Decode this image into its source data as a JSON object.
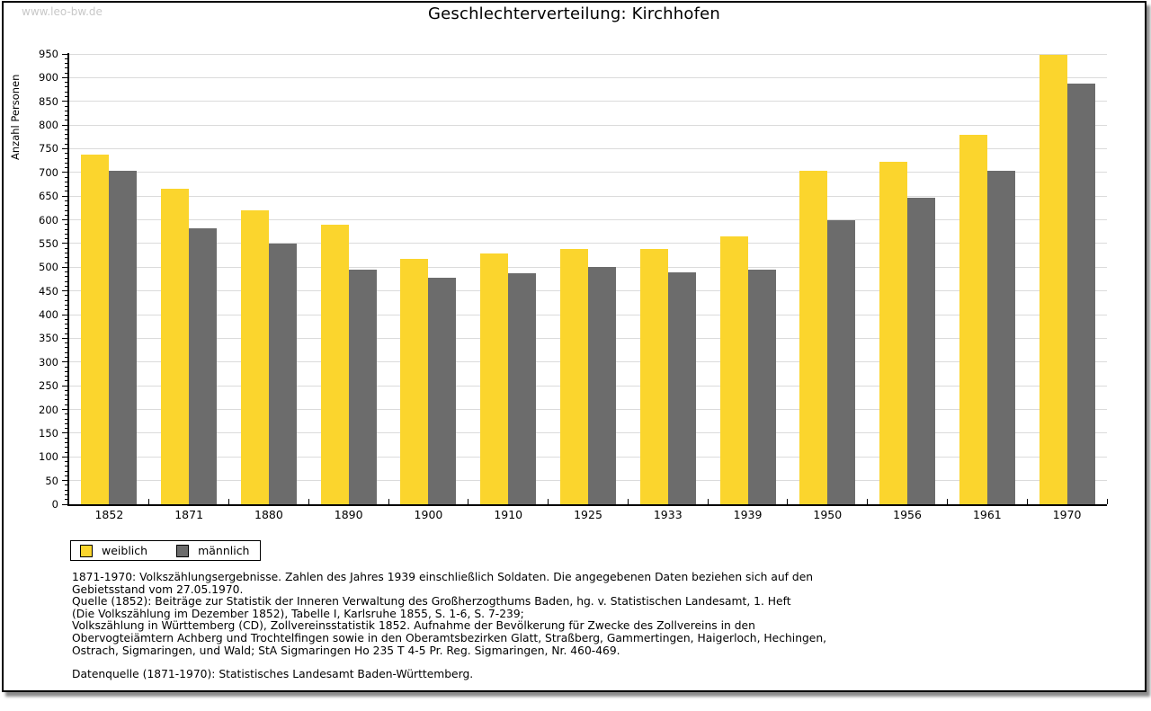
{
  "watermark": "www.leo-bw.de",
  "header": {
    "title": "Geschlechterverteilung: Kirchhofen"
  },
  "chart_data": {
    "type": "bar",
    "title": "Geschlechterverteilung: Kirchhofen",
    "xlabel": "",
    "ylabel": "Anzahl Personen",
    "ylim": [
      0,
      950
    ],
    "ytick_step": 50,
    "minor_tick_step": 10,
    "grid": true,
    "legend_position": "bottom-left",
    "categories": [
      "1852",
      "1871",
      "1880",
      "1890",
      "1900",
      "1910",
      "1925",
      "1933",
      "1939",
      "1950",
      "1956",
      "1961",
      "1970"
    ],
    "series": [
      {
        "name": "weiblich",
        "color": "#FBD52D",
        "values": [
          737,
          665,
          620,
          589,
          517,
          530,
          538,
          538,
          566,
          704,
          722,
          780,
          948
        ]
      },
      {
        "name": "männlich",
        "color": "#6C6C6C",
        "values": [
          703,
          583,
          550,
          495,
          477,
          488,
          501,
          490,
          494,
          599,
          647,
          704,
          888
        ]
      }
    ],
    "colors": {
      "grid": "#DBDBDB",
      "axis": "#000000",
      "watermark": "#C8C8C8"
    }
  },
  "footnote": {
    "lines": [
      "1871-1970: Volkszählungsergebnisse. Zahlen des Jahres 1939 einschließlich Soldaten. Die angegebenen Daten beziehen sich auf den",
      "Gebietsstand vom 27.05.1970.",
      "Quelle (1852): Beiträge zur Statistik der Inneren Verwaltung des Großherzogthums Baden, hg. v. Statistischen Landesamt, 1. Heft",
      "(Die Volkszählung im Dezember 1852), Tabelle I, Karlsruhe 1855, S. 1-6, S. 7-239;",
      "Volkszählung in Württemberg (CD), Zollvereinsstatistik 1852. Aufnahme der Bevölkerung für Zwecke des Zollvereins in den",
      "Obervogteiämtern Achberg und Trochtelfingen sowie in den Oberamtsbezirken Glatt, Straßberg, Gammertingen, Haigerloch, Hechingen,",
      "Ostrach, Sigmaringen, und Wald; StA Sigmaringen Ho 235 T 4-5 Pr. Reg. Sigmaringen, Nr. 460-469."
    ],
    "datasource": "Datenquelle (1871-1970): Statistisches Landesamt Baden-Württemberg."
  }
}
